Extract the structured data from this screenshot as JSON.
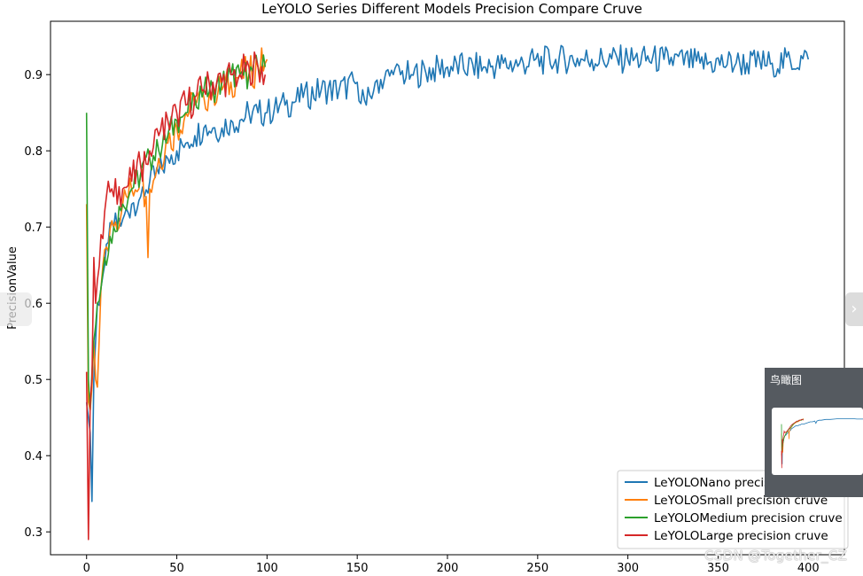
{
  "chart_data": {
    "type": "line",
    "title": "LeYOLO Series Different Models Precision Compare Cruve",
    "xlabel": "",
    "ylabel": "PrecisionValue",
    "xlim": [
      -20,
      420
    ],
    "ylim": [
      0.27,
      0.97
    ],
    "xticks": [
      0,
      50,
      100,
      150,
      200,
      250,
      300,
      350,
      400
    ],
    "yticks": [
      0.3,
      0.4,
      0.5,
      0.6,
      0.7,
      0.8,
      0.9
    ],
    "grid": false,
    "legend_position": "lower-right",
    "series": [
      {
        "name": "LeYOLONano precision cruve",
        "color": "#1f77b4",
        "noise": 0.012,
        "x": [
          0,
          1,
          2,
          3,
          4,
          5,
          6,
          8,
          10,
          12,
          15,
          20,
          25,
          30,
          35,
          40,
          45,
          50,
          55,
          60,
          65,
          70,
          75,
          80,
          85,
          90,
          95,
          100,
          110,
          120,
          130,
          140,
          150,
          155,
          160,
          170,
          180,
          200,
          220,
          240,
          260,
          280,
          300,
          320,
          340,
          360,
          380,
          400
        ],
        "y": [
          0.47,
          0.45,
          0.43,
          0.34,
          0.5,
          0.55,
          0.6,
          0.62,
          0.65,
          0.68,
          0.7,
          0.71,
          0.73,
          0.74,
          0.76,
          0.77,
          0.79,
          0.8,
          0.81,
          0.82,
          0.83,
          0.83,
          0.83,
          0.84,
          0.84,
          0.85,
          0.85,
          0.85,
          0.86,
          0.87,
          0.88,
          0.88,
          0.89,
          0.86,
          0.89,
          0.9,
          0.9,
          0.91,
          0.91,
          0.915,
          0.92,
          0.92,
          0.92,
          0.92,
          0.915,
          0.915,
          0.915,
          0.92
        ]
      },
      {
        "name": "LeYOLOSmall precision cruve",
        "color": "#ff7f0e",
        "noise": 0.015,
        "x": [
          0,
          1,
          2,
          3,
          4,
          5,
          6,
          8,
          10,
          15,
          20,
          25,
          30,
          33,
          34,
          35,
          40,
          45,
          50,
          55,
          60,
          65,
          70,
          75,
          80,
          85,
          90,
          95,
          100
        ],
        "y": [
          0.73,
          0.47,
          0.46,
          0.49,
          0.55,
          0.5,
          0.49,
          0.62,
          0.67,
          0.7,
          0.73,
          0.75,
          0.77,
          0.74,
          0.66,
          0.75,
          0.79,
          0.81,
          0.83,
          0.85,
          0.86,
          0.87,
          0.88,
          0.88,
          0.89,
          0.9,
          0.9,
          0.91,
          0.92
        ]
      },
      {
        "name": "LeYOLOMedium precision cruve",
        "color": "#2ca02c",
        "noise": 0.012,
        "x": [
          0,
          1,
          2,
          3,
          4,
          5,
          6,
          8,
          10,
          15,
          20,
          25,
          30,
          35,
          40,
          45,
          50,
          55,
          60,
          65,
          70,
          75,
          80,
          85,
          90,
          95,
          99
        ],
        "y": [
          0.85,
          0.5,
          0.46,
          0.51,
          0.55,
          0.57,
          0.6,
          0.62,
          0.66,
          0.7,
          0.73,
          0.75,
          0.77,
          0.79,
          0.8,
          0.82,
          0.84,
          0.85,
          0.87,
          0.88,
          0.88,
          0.89,
          0.9,
          0.9,
          0.9,
          0.91,
          0.91
        ]
      },
      {
        "name": "LeYOLOLarge precision cruve",
        "color": "#d62728",
        "noise": 0.015,
        "x": [
          0,
          1,
          2,
          3,
          4,
          5,
          6,
          8,
          10,
          12,
          15,
          20,
          25,
          30,
          35,
          40,
          45,
          50,
          55,
          60,
          65,
          70,
          75,
          80,
          85,
          90,
          95,
          99
        ],
        "y": [
          0.51,
          0.29,
          0.47,
          0.5,
          0.66,
          0.6,
          0.63,
          0.69,
          0.72,
          0.76,
          0.74,
          0.75,
          0.76,
          0.78,
          0.8,
          0.82,
          0.84,
          0.85,
          0.86,
          0.87,
          0.88,
          0.89,
          0.89,
          0.9,
          0.9,
          0.91,
          0.91,
          0.9
        ]
      }
    ]
  },
  "overlay": {
    "overview_label": "鸟瞰图",
    "watermark": "CSDN @Together_CZ",
    "side_arrow": "›"
  }
}
